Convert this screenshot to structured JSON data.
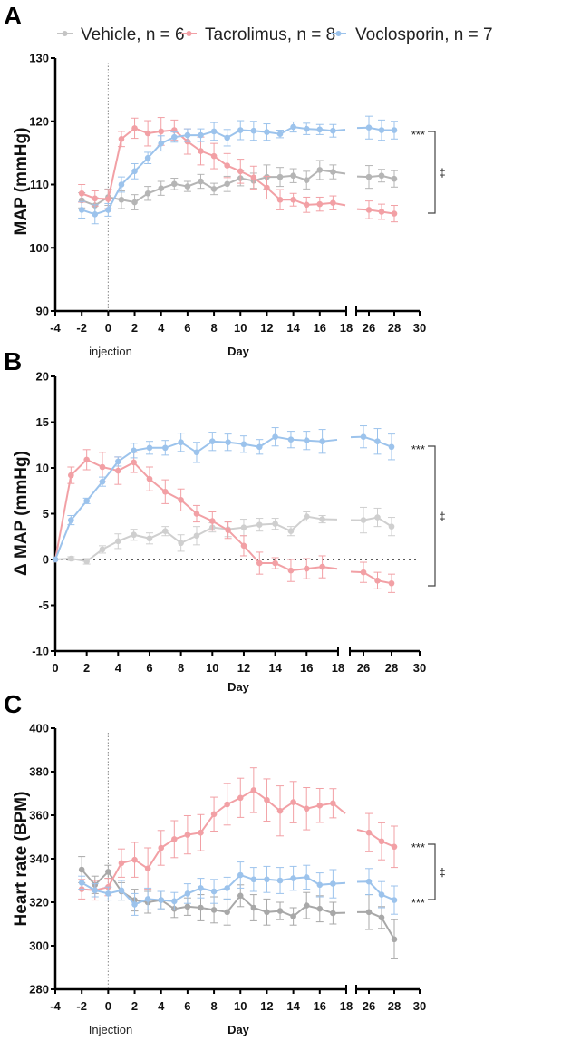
{
  "legend": [
    {
      "label": "Vehicle, n = 6",
      "color": "#c4c4c4"
    },
    {
      "label": "Tacrolimus, n = 8",
      "color": "#f2a0a5"
    },
    {
      "label": "Voclosporin, n = 7",
      "color": "#9cc3ec"
    }
  ],
  "chart_data": [
    {
      "panel": "A",
      "type": "line",
      "xlabel": "Day",
      "ylabel": "MAP (mmHg)",
      "ylim": [
        90,
        130
      ],
      "yticks": [
        "90",
        "100",
        "110",
        "120",
        "130"
      ],
      "xticks": [
        "-4",
        "-2",
        "0",
        "2",
        "4",
        "6",
        "8",
        "10",
        "12",
        "14",
        "16",
        "18",
        "26",
        "28",
        "30"
      ],
      "x_axis_break": [
        18,
        26
      ],
      "annotation_x": "injection",
      "significance": {
        "stars": "***",
        "dagger": "‡"
      },
      "x": [
        -2,
        -1,
        0,
        1,
        2,
        3,
        4,
        5,
        6,
        7,
        8,
        9,
        10,
        11,
        12,
        13,
        14,
        15,
        16,
        17,
        26,
        27,
        28
      ],
      "series": [
        {
          "name": "Vehicle, n = 6",
          "color": "#b5b5b5",
          "values": [
            107.5,
            106.7,
            108,
            107.6,
            107.2,
            108.6,
            109.4,
            110.1,
            109.7,
            110.5,
            109.3,
            110.1,
            111,
            110.6,
            111.2,
            111.2,
            111.4,
            110.7,
            112.3,
            112,
            111.2,
            111.4,
            110.9
          ],
          "error": [
            1.2,
            1.2,
            1.3,
            1.4,
            1.2,
            1.1,
            1.1,
            0.9,
            0.8,
            1.1,
            0.9,
            1.2,
            1.2,
            1.2,
            1.9,
            1.5,
            1.1,
            1.4,
            1.5,
            1.1,
            1.8,
            1.0,
            1.3
          ]
        },
        {
          "name": "Tacrolimus, n = 8",
          "color": "#f2a0a5",
          "values": [
            108.6,
            107.8,
            107.7,
            117.2,
            118.9,
            118.1,
            118.4,
            118.6,
            116.8,
            115.3,
            114.5,
            113,
            112.1,
            111.1,
            109.5,
            107.6,
            107.6,
            106.8,
            106.9,
            107.1,
            106,
            105.7,
            105.4
          ],
          "error": [
            1.4,
            1.2,
            1.5,
            1.2,
            1.6,
            2.0,
            2.2,
            1.6,
            2.0,
            2.2,
            2.0,
            1.9,
            1.9,
            1.8,
            1.8,
            1.6,
            1.0,
            1.2,
            1.1,
            1.1,
            1.4,
            1.2,
            1.3
          ]
        },
        {
          "name": "Voclosporin, n = 7",
          "color": "#9cc3ec",
          "values": [
            106,
            105.3,
            106,
            110,
            112.1,
            114.2,
            116.5,
            117.5,
            117.8,
            117.8,
            118.4,
            117.4,
            118.6,
            118.5,
            118.3,
            118,
            119.1,
            118.8,
            118.7,
            118.5,
            119,
            118.6,
            118.6
          ],
          "error": [
            1.3,
            1.5,
            1.0,
            1.2,
            1.2,
            0.9,
            1.2,
            0.8,
            1.0,
            1.0,
            1.4,
            1.3,
            1.5,
            1.5,
            1.3,
            0.6,
            0.8,
            0.9,
            0.8,
            1.0,
            1.8,
            1.6,
            1.4
          ]
        }
      ]
    },
    {
      "panel": "B",
      "type": "line",
      "xlabel": "Day",
      "ylabel": "Δ MAP (mmHg)",
      "ylim": [
        -10,
        20
      ],
      "yticks": [
        "-10",
        "-5",
        "0",
        "5",
        "10",
        "15",
        "20"
      ],
      "xticks": [
        "0",
        "2",
        "4",
        "6",
        "8",
        "10",
        "12",
        "14",
        "16",
        "18",
        "26",
        "28",
        "30"
      ],
      "x_axis_break": [
        18,
        26
      ],
      "significance": {
        "stars": "***",
        "dagger": "‡"
      },
      "x": [
        0,
        1,
        2,
        3,
        4,
        5,
        6,
        7,
        8,
        9,
        10,
        11,
        12,
        13,
        14,
        15,
        16,
        17,
        26,
        27,
        28
      ],
      "series": [
        {
          "name": "Vehicle, n = 6",
          "color": "#cfcfcf",
          "values": [
            0,
            0.1,
            -0.2,
            1.1,
            2,
            2.7,
            2.3,
            3.1,
            1.8,
            2.6,
            3.5,
            3.3,
            3.5,
            3.8,
            3.9,
            3.1,
            4.7,
            4.4,
            4.3,
            4.6,
            3.6
          ],
          "error": [
            0,
            0.2,
            0.3,
            0.4,
            0.8,
            0.6,
            0.6,
            0.5,
            0.9,
            1.0,
            0.5,
            0.8,
            0.9,
            0.7,
            0.6,
            0.5,
            0.5,
            0.4,
            1.4,
            1.0,
            1.0
          ]
        },
        {
          "name": "Tacrolimus, n = 8",
          "color": "#f2a0a5",
          "values": [
            0,
            9.2,
            10.9,
            10.1,
            9.7,
            10.6,
            8.8,
            7.4,
            6.5,
            5,
            4.2,
            3.2,
            1.5,
            -0.4,
            -0.4,
            -1.2,
            -1,
            -0.8,
            -1.4,
            -2.3,
            -2.6
          ],
          "error": [
            0,
            0.9,
            1.1,
            1.6,
            1.5,
            1.1,
            1.3,
            1.3,
            1.2,
            0.9,
            1.0,
            0.9,
            1.1,
            1.2,
            0.6,
            1.2,
            1.1,
            1.2,
            1.1,
            0.9,
            1.0
          ]
        },
        {
          "name": "Voclosporin, n = 7",
          "color": "#9cc3ec",
          "values": [
            0,
            4.3,
            6.4,
            8.5,
            10.7,
            11.9,
            12.2,
            12.2,
            12.8,
            11.7,
            12.9,
            12.8,
            12.6,
            12.3,
            13.4,
            13.1,
            13,
            12.9,
            13.4,
            12.9,
            12.3
          ],
          "error": [
            0,
            0.5,
            0.3,
            0.5,
            0.5,
            0.8,
            0.7,
            0.8,
            1.0,
            1.1,
            1.0,
            0.9,
            0.9,
            0.8,
            1.0,
            0.9,
            1.0,
            1.3,
            1.2,
            1.4,
            1.4
          ]
        }
      ]
    },
    {
      "panel": "C",
      "type": "line",
      "xlabel": "Day",
      "ylabel": "Heart rate (BPM)",
      "ylim": [
        280,
        400
      ],
      "yticks": [
        "280",
        "300",
        "320",
        "340",
        "360",
        "380",
        "400"
      ],
      "xticks": [
        "-4",
        "-2",
        "0",
        "2",
        "4",
        "6",
        "8",
        "10",
        "12",
        "14",
        "16",
        "18",
        "26",
        "28",
        "30"
      ],
      "x_axis_break": [
        18,
        26
      ],
      "annotation_x": "Injection",
      "significance": {
        "stars_top": "***",
        "stars_bottom": "***",
        "dagger": "‡"
      },
      "x": [
        -2,
        -1,
        0,
        1,
        2,
        3,
        4,
        5,
        6,
        7,
        8,
        9,
        10,
        11,
        12,
        13,
        14,
        15,
        16,
        17,
        26,
        27,
        28
      ],
      "series": [
        {
          "name": "Vehicle, n = 6",
          "color": "#a8a8a8",
          "values": [
            335,
            328,
            334,
            325,
            321,
            320,
            321,
            317,
            318,
            317.5,
            316.5,
            315.5,
            323,
            317.5,
            315.5,
            316,
            313.5,
            318.5,
            317,
            315,
            315.5,
            313,
            303
          ],
          "error": [
            6,
            4,
            3,
            4,
            5,
            5,
            4,
            4,
            4,
            6,
            6,
            6,
            5,
            6,
            6,
            4,
            4,
            6,
            6,
            5,
            8,
            5,
            9
          ]
        },
        {
          "name": "Tacrolimus, n = 8",
          "color": "#f2a0a5",
          "values": [
            326,
            325.5,
            327,
            338,
            339.5,
            335.5,
            345,
            349,
            351,
            352,
            360.5,
            365,
            368,
            371.5,
            367,
            362,
            366,
            363,
            364.5,
            365.5,
            352,
            348,
            345.5
          ],
          "error": [
            4.5,
            4.5,
            4,
            6.5,
            8,
            9.5,
            8,
            8.5,
            8.8,
            8.3,
            7.8,
            9.5,
            9,
            10.3,
            9.7,
            11.5,
            9.5,
            9.7,
            7.8,
            6.7,
            8.8,
            8.5,
            9.5
          ]
        },
        {
          "name": "Voclosporin, n = 7",
          "color": "#9cc3ec",
          "values": [
            329,
            325.5,
            324,
            325.5,
            319,
            321.5,
            321,
            320.5,
            324,
            326.5,
            325,
            326.5,
            332.5,
            330.5,
            330.5,
            330,
            331,
            331.5,
            328,
            328.5,
            329.5,
            323.5,
            321
          ],
          "error": [
            3,
            3,
            3,
            4.5,
            5,
            5,
            4,
            4,
            4.5,
            4.5,
            5.5,
            5,
            6,
            5.5,
            6,
            6,
            5.5,
            5.5,
            5.5,
            6.5,
            6,
            6,
            6.5
          ]
        }
      ]
    }
  ]
}
